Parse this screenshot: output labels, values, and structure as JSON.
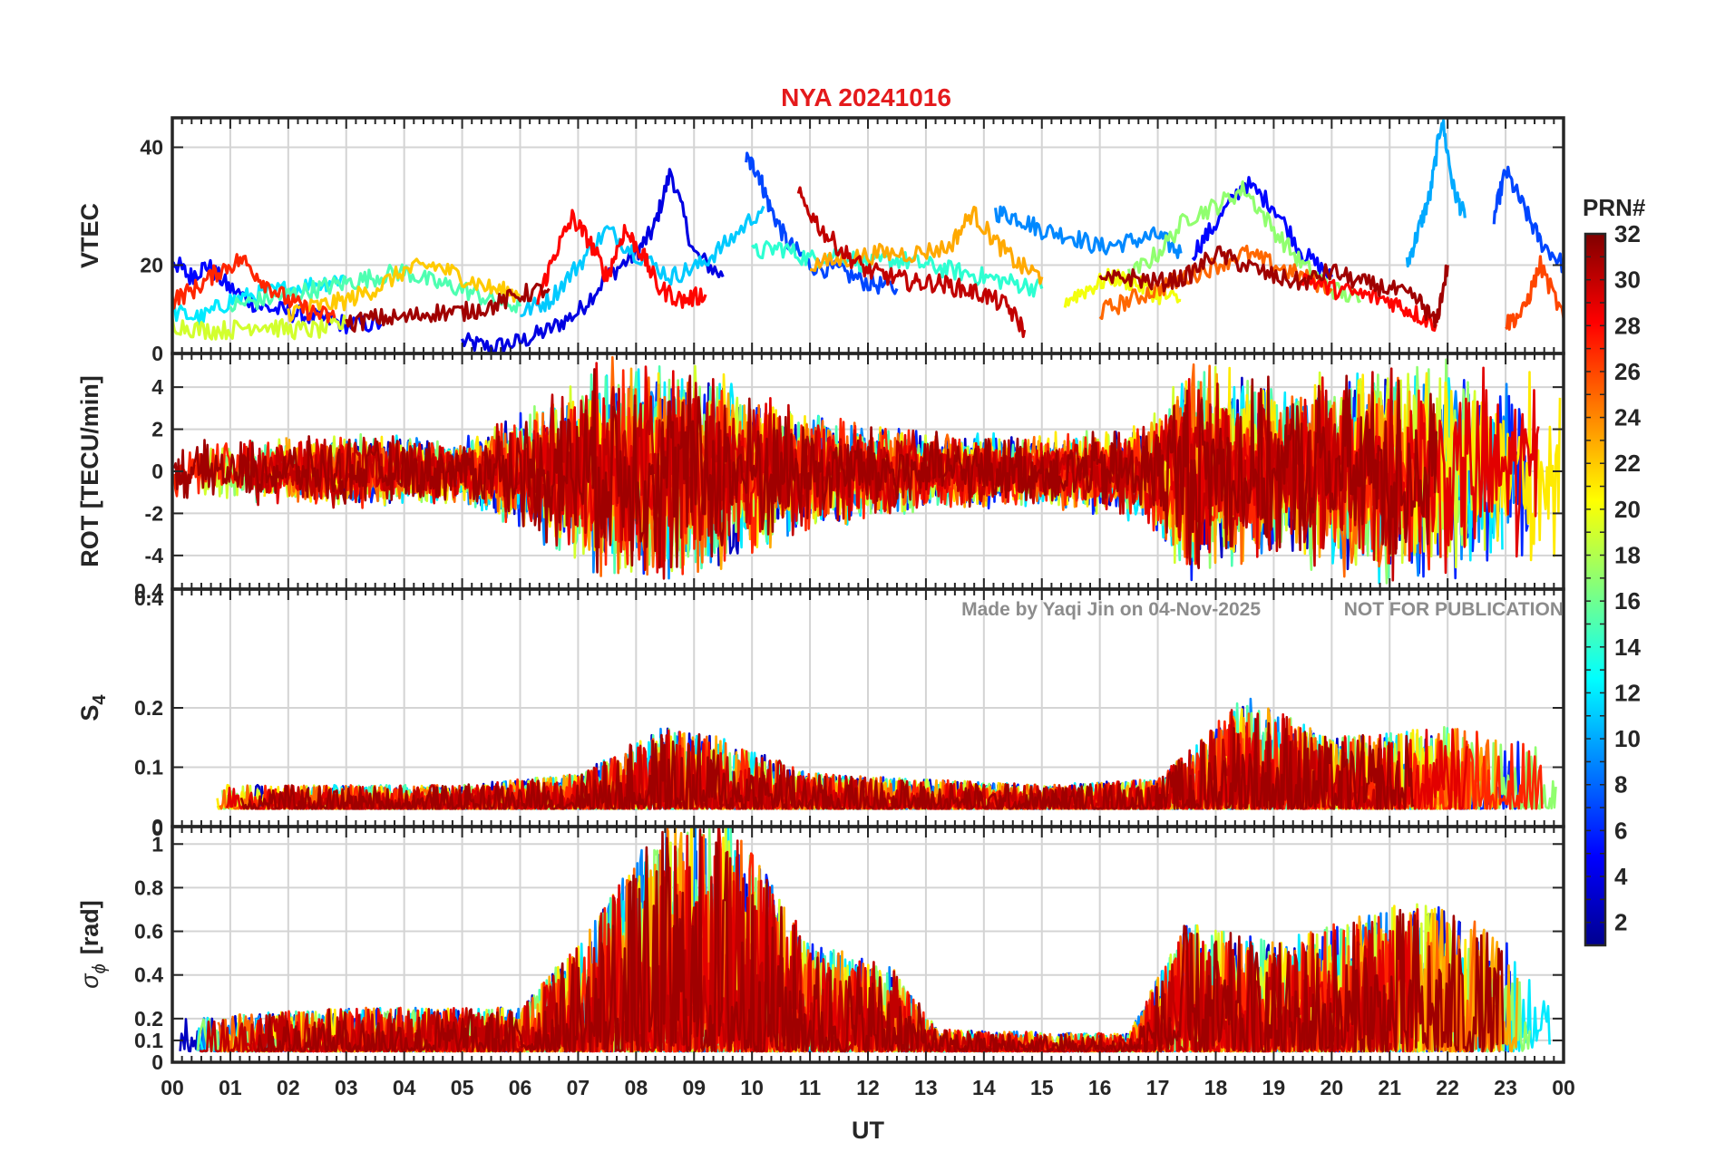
{
  "chart_data": [
    {
      "type": "line",
      "panel": "vtec",
      "title": "NYA   20241016",
      "ylabel": "VTEC",
      "ylim": [
        5,
        45
      ],
      "yticks": [
        "20",
        "40"
      ],
      "ytick_values": [
        20,
        40
      ],
      "xlim": [
        0,
        24
      ],
      "grid": true,
      "series": [
        {
          "prn": 4,
          "x": [
            5.0,
            5.5,
            6.0,
            6.5,
            7.0,
            7.5,
            8.0,
            8.3,
            8.6,
            9.0,
            9.5
          ],
          "y": [
            7,
            6,
            7,
            9,
            12,
            18,
            22,
            26,
            36,
            22,
            18
          ]
        },
        {
          "prn": 5,
          "x": [
            0.0,
            0.3,
            0.6,
            1.0,
            1.5,
            2.0,
            2.5,
            3.0,
            3.6
          ],
          "y": [
            21,
            18,
            20,
            16,
            13,
            12,
            11,
            10,
            10
          ]
        },
        {
          "prn": 7,
          "x": [
            9.9,
            10.1,
            10.3,
            10.6,
            11.0,
            11.5,
            12.0,
            12.5
          ],
          "y": [
            38,
            36,
            30,
            24,
            20,
            19,
            17,
            16
          ]
        },
        {
          "prn": 9,
          "x": [
            14.2,
            14.6,
            15.0,
            15.5,
            16.0,
            16.5,
            17.0,
            17.4
          ],
          "y": [
            29,
            28,
            26,
            25,
            23,
            24,
            25,
            22
          ]
        },
        {
          "prn": 5,
          "x": [
            17.6,
            18.0,
            18.5,
            19.0,
            19.5,
            20.0
          ],
          "y": [
            22,
            27,
            34,
            30,
            22,
            18
          ]
        },
        {
          "prn": 10,
          "x": [
            21.3,
            21.5,
            21.7,
            21.9,
            22.1,
            22.3
          ],
          "y": [
            20,
            26,
            32,
            45,
            33,
            28
          ]
        },
        {
          "prn": 7,
          "x": [
            22.8,
            23.0,
            23.3,
            23.6,
            24.0
          ],
          "y": [
            28,
            36,
            30,
            24,
            20
          ]
        },
        {
          "prn": 12,
          "x": [
            0.0,
            0.5,
            1.0,
            1.5,
            2.0,
            2.6,
            3.0
          ],
          "y": [
            12,
            11,
            14,
            15,
            16,
            17,
            18
          ]
        },
        {
          "prn": 11,
          "x": [
            6.0,
            6.5,
            7.0,
            7.5,
            8.0,
            8.6,
            9.1,
            9.6,
            10.2
          ],
          "y": [
            12,
            14,
            20,
            26,
            22,
            18,
            20,
            24,
            30
          ]
        },
        {
          "prn": 14,
          "x": [
            10.0,
            10.5,
            11.0,
            11.5,
            12.0,
            12.5,
            13.0,
            13.5,
            14.0,
            14.5,
            15.0
          ],
          "y": [
            22,
            23,
            21,
            22,
            20,
            21,
            20,
            19,
            18,
            17,
            16
          ]
        },
        {
          "prn": 15,
          "x": [
            1.0,
            1.5,
            2.0,
            2.5,
            3.0,
            3.5,
            4.0,
            4.5,
            5.0,
            5.5,
            6.0
          ],
          "y": [
            13,
            14,
            15,
            16,
            17,
            18,
            19,
            17,
            16,
            14,
            13
          ]
        },
        {
          "prn": 17,
          "x": [
            16.5,
            17.0,
            17.5,
            18.0,
            18.5,
            19.0,
            19.5,
            20.0,
            20.5
          ],
          "y": [
            18,
            22,
            28,
            30,
            33,
            26,
            20,
            16,
            14
          ]
        },
        {
          "prn": 19,
          "x": [
            0.0,
            0.5,
            1.0,
            1.5,
            2.0,
            2.5,
            3.0
          ],
          "y": [
            10,
            9,
            9,
            10,
            9,
            9,
            10
          ]
        },
        {
          "prn": 20,
          "x": [
            15.4,
            15.8,
            16.2,
            16.6,
            17.0,
            17.4
          ],
          "y": [
            14,
            16,
            18,
            17,
            15,
            14
          ]
        },
        {
          "prn": 22,
          "x": [
            2.0,
            2.5,
            3.0,
            3.5,
            4.0,
            4.5,
            5.0,
            5.5,
            6.0
          ],
          "y": [
            12,
            13,
            14,
            16,
            19,
            20,
            18,
            16,
            15
          ]
        },
        {
          "prn": 23,
          "x": [
            11.0,
            11.6,
            12.2,
            12.8,
            13.4,
            13.8,
            14.2,
            14.6,
            15.0
          ],
          "y": [
            20,
            21,
            22,
            22,
            23,
            29,
            24,
            20,
            18
          ]
        },
        {
          "prn": 25,
          "x": [
            16.0,
            16.5,
            17.0,
            17.5,
            18.0,
            18.5,
            19.0,
            19.5,
            20.0
          ],
          "y": [
            12,
            14,
            16,
            18,
            20,
            22,
            20,
            18,
            16
          ]
        },
        {
          "prn": 27,
          "x": [
            0.0,
            0.4,
            0.8,
            1.2,
            1.6,
            2.0,
            2.4,
            2.8
          ],
          "y": [
            14,
            16,
            19,
            21,
            17,
            14,
            12,
            11
          ]
        },
        {
          "prn": 28,
          "x": [
            6.3,
            6.6,
            6.9,
            7.2,
            7.5,
            7.8,
            8.1,
            8.4,
            8.8,
            9.2
          ],
          "y": [
            14,
            22,
            28,
            24,
            18,
            26,
            22,
            16,
            14,
            15
          ]
        },
        {
          "prn": 28,
          "x": [
            19.5,
            20.0,
            20.5,
            21.0,
            21.4,
            21.8
          ],
          "y": [
            18,
            16,
            15,
            14,
            12,
            10
          ]
        },
        {
          "prn": 26,
          "x": [
            23.0,
            23.3,
            23.6,
            24.0
          ],
          "y": [
            10,
            12,
            20,
            11
          ]
        },
        {
          "prn": 30,
          "x": [
            10.8,
            11.2,
            11.6,
            12.0,
            12.4,
            12.8,
            13.2,
            13.6,
            14.0,
            14.4,
            14.7
          ],
          "y": [
            32,
            26,
            22,
            19,
            18,
            17,
            17,
            16,
            15,
            13,
            9
          ]
        },
        {
          "prn": 31,
          "x": [
            3.0,
            3.5,
            4.0,
            4.5,
            5.0,
            5.5,
            6.0,
            6.5
          ],
          "y": [
            10,
            11,
            11,
            12,
            12,
            13,
            15,
            16
          ]
        },
        {
          "prn": 31,
          "x": [
            16.0,
            16.5,
            17.0,
            17.5,
            18.0,
            18.5,
            19.0,
            19.5,
            20.0,
            20.5,
            21.0,
            21.5,
            21.8,
            22.0
          ],
          "y": [
            17,
            18,
            17,
            18,
            22,
            20,
            18,
            17,
            19,
            17,
            16,
            14,
            10,
            20
          ]
        }
      ]
    },
    {
      "type": "line",
      "panel": "rot",
      "ylabel": "ROT [TECU/min]",
      "ylim": [
        -5.6,
        5.6
      ],
      "yticks": [
        "-4",
        "-2",
        "0",
        "2",
        "4"
      ],
      "ytick_values": [
        -4,
        -2,
        0,
        2,
        4
      ],
      "edge_labels": [
        "0",
        "0.4"
      ],
      "xlim": [
        0,
        24
      ],
      "grid": true,
      "noise_envelope": [
        {
          "x": 0,
          "a": 1.5
        },
        {
          "x": 3,
          "a": 1.8
        },
        {
          "x": 5,
          "a": 1.6
        },
        {
          "x": 6.3,
          "a": 3.5
        },
        {
          "x": 7.5,
          "a": 5.5
        },
        {
          "x": 9,
          "a": 5.5
        },
        {
          "x": 11,
          "a": 3.0
        },
        {
          "x": 13,
          "a": 2.0
        },
        {
          "x": 15,
          "a": 1.8
        },
        {
          "x": 16.8,
          "a": 2.5
        },
        {
          "x": 17.5,
          "a": 5.5
        },
        {
          "x": 19,
          "a": 4.5
        },
        {
          "x": 21,
          "a": 5.5
        },
        {
          "x": 24,
          "a": 5.5
        }
      ]
    },
    {
      "type": "line",
      "panel": "s4",
      "ylabel": "S4",
      "ylabel_main": "S",
      "ylabel_sub": "4",
      "ylim": [
        0,
        0.4
      ],
      "yticks": [
        "0",
        "0.1",
        "0.2"
      ],
      "ytick_values": [
        0,
        0.1,
        0.2
      ],
      "edge_labels": [
        "0.4"
      ],
      "xlim": [
        0,
        24
      ],
      "grid": true,
      "noise_envelope": [
        {
          "x": 0,
          "a": 0.04
        },
        {
          "x": 5,
          "a": 0.04
        },
        {
          "x": 7,
          "a": 0.06
        },
        {
          "x": 8.5,
          "a": 0.14
        },
        {
          "x": 9.5,
          "a": 0.12
        },
        {
          "x": 11,
          "a": 0.06
        },
        {
          "x": 15,
          "a": 0.04
        },
        {
          "x": 17,
          "a": 0.05
        },
        {
          "x": 18.5,
          "a": 0.19
        },
        {
          "x": 20,
          "a": 0.12
        },
        {
          "x": 22,
          "a": 0.14
        },
        {
          "x": 24,
          "a": 0.1
        }
      ]
    },
    {
      "type": "line",
      "panel": "sigma",
      "ylabel": "σ",
      "ylabel_sub": "ϕ",
      "ylabel_unit": "[rad]",
      "ylim": [
        0,
        1.08
      ],
      "yticks": [
        "0",
        "0.1",
        "0.2",
        "0.4",
        "0.6",
        "0.8",
        "1"
      ],
      "ytick_values": [
        0,
        0.1,
        0.2,
        0.4,
        0.6,
        0.8,
        1.0
      ],
      "xlim": [
        0,
        24
      ],
      "grid": true,
      "noise_envelope": [
        {
          "x": 0,
          "a": 0.15
        },
        {
          "x": 3,
          "a": 0.2
        },
        {
          "x": 6,
          "a": 0.2
        },
        {
          "x": 7,
          "a": 0.5
        },
        {
          "x": 8.5,
          "a": 1.08
        },
        {
          "x": 9.6,
          "a": 1.08
        },
        {
          "x": 11,
          "a": 0.5
        },
        {
          "x": 12.4,
          "a": 0.4
        },
        {
          "x": 13.2,
          "a": 0.1
        },
        {
          "x": 16.5,
          "a": 0.08
        },
        {
          "x": 17.5,
          "a": 0.6
        },
        {
          "x": 19,
          "a": 0.5
        },
        {
          "x": 21.5,
          "a": 0.7
        },
        {
          "x": 22.5,
          "a": 0.6
        },
        {
          "x": 24,
          "a": 0.3
        }
      ]
    }
  ],
  "xaxis": {
    "label": "UT",
    "ticks": [
      "00",
      "01",
      "02",
      "03",
      "04",
      "05",
      "06",
      "07",
      "08",
      "09",
      "10",
      "11",
      "12",
      "13",
      "14",
      "15",
      "16",
      "17",
      "18",
      "19",
      "20",
      "21",
      "22",
      "23",
      "00"
    ]
  },
  "colorbar": {
    "title": "PRN#",
    "range": [
      1,
      32
    ],
    "ticks": [
      "2",
      "4",
      "6",
      "8",
      "10",
      "12",
      "14",
      "16",
      "18",
      "20",
      "22",
      "24",
      "26",
      "28",
      "30",
      "32"
    ],
    "tick_values": [
      2,
      4,
      6,
      8,
      10,
      12,
      14,
      16,
      18,
      20,
      22,
      24,
      26,
      28,
      30,
      32
    ],
    "colormap": "jet"
  },
  "watermark": {
    "left": "Made by Yaqi Jin on 04-Nov-2025",
    "right": "NOT FOR PUBLICATION"
  },
  "colors": {
    "title": "#e41a1c",
    "axis": "#262626",
    "grid": "#d9d9d9",
    "watermark": "#8c8c8c"
  }
}
